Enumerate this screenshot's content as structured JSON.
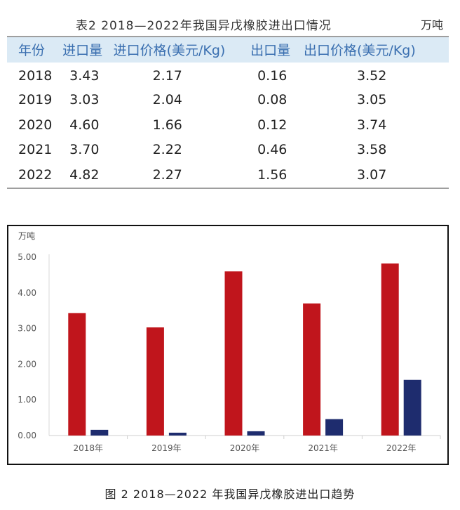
{
  "table": {
    "caption": "表2  2018—2022年我国异戊橡胶进出口情况",
    "unit": "万吨",
    "headers": [
      "年份",
      "进口量",
      "进口价格(美元/Kg)",
      "出口量",
      "出口价格(美元/Kg)"
    ],
    "rows": [
      [
        "2018",
        "3.43",
        "2.17",
        "0.16",
        "3.52"
      ],
      [
        "2019",
        "3.03",
        "2.04",
        "0.08",
        "3.05"
      ],
      [
        "2020",
        "4.60",
        "1.66",
        "0.12",
        "3.74"
      ],
      [
        "2021",
        "3.70",
        "2.22",
        "0.46",
        "3.58"
      ],
      [
        "2022",
        "4.82",
        "2.27",
        "1.56",
        "3.07"
      ]
    ]
  },
  "chart_data": {
    "type": "bar",
    "ylabel": "万吨",
    "categories": [
      "2018年",
      "2019年",
      "2020年",
      "2021年",
      "2022年"
    ],
    "series": [
      {
        "values": [
          3.43,
          3.03,
          4.6,
          3.7,
          4.82
        ],
        "color": "#c0151c"
      },
      {
        "values": [
          0.16,
          0.08,
          0.12,
          0.46,
          1.56
        ],
        "color": "#1e2c6e"
      }
    ],
    "y_ticks": [
      "0.00",
      "1.00",
      "2.00",
      "3.00",
      "4.00",
      "5.00"
    ],
    "ylim": [
      0,
      5
    ],
    "grid": false,
    "legend": "none"
  },
  "figure_caption": "图 2  2018—2022 年我国异戊橡胶进出口趋势"
}
